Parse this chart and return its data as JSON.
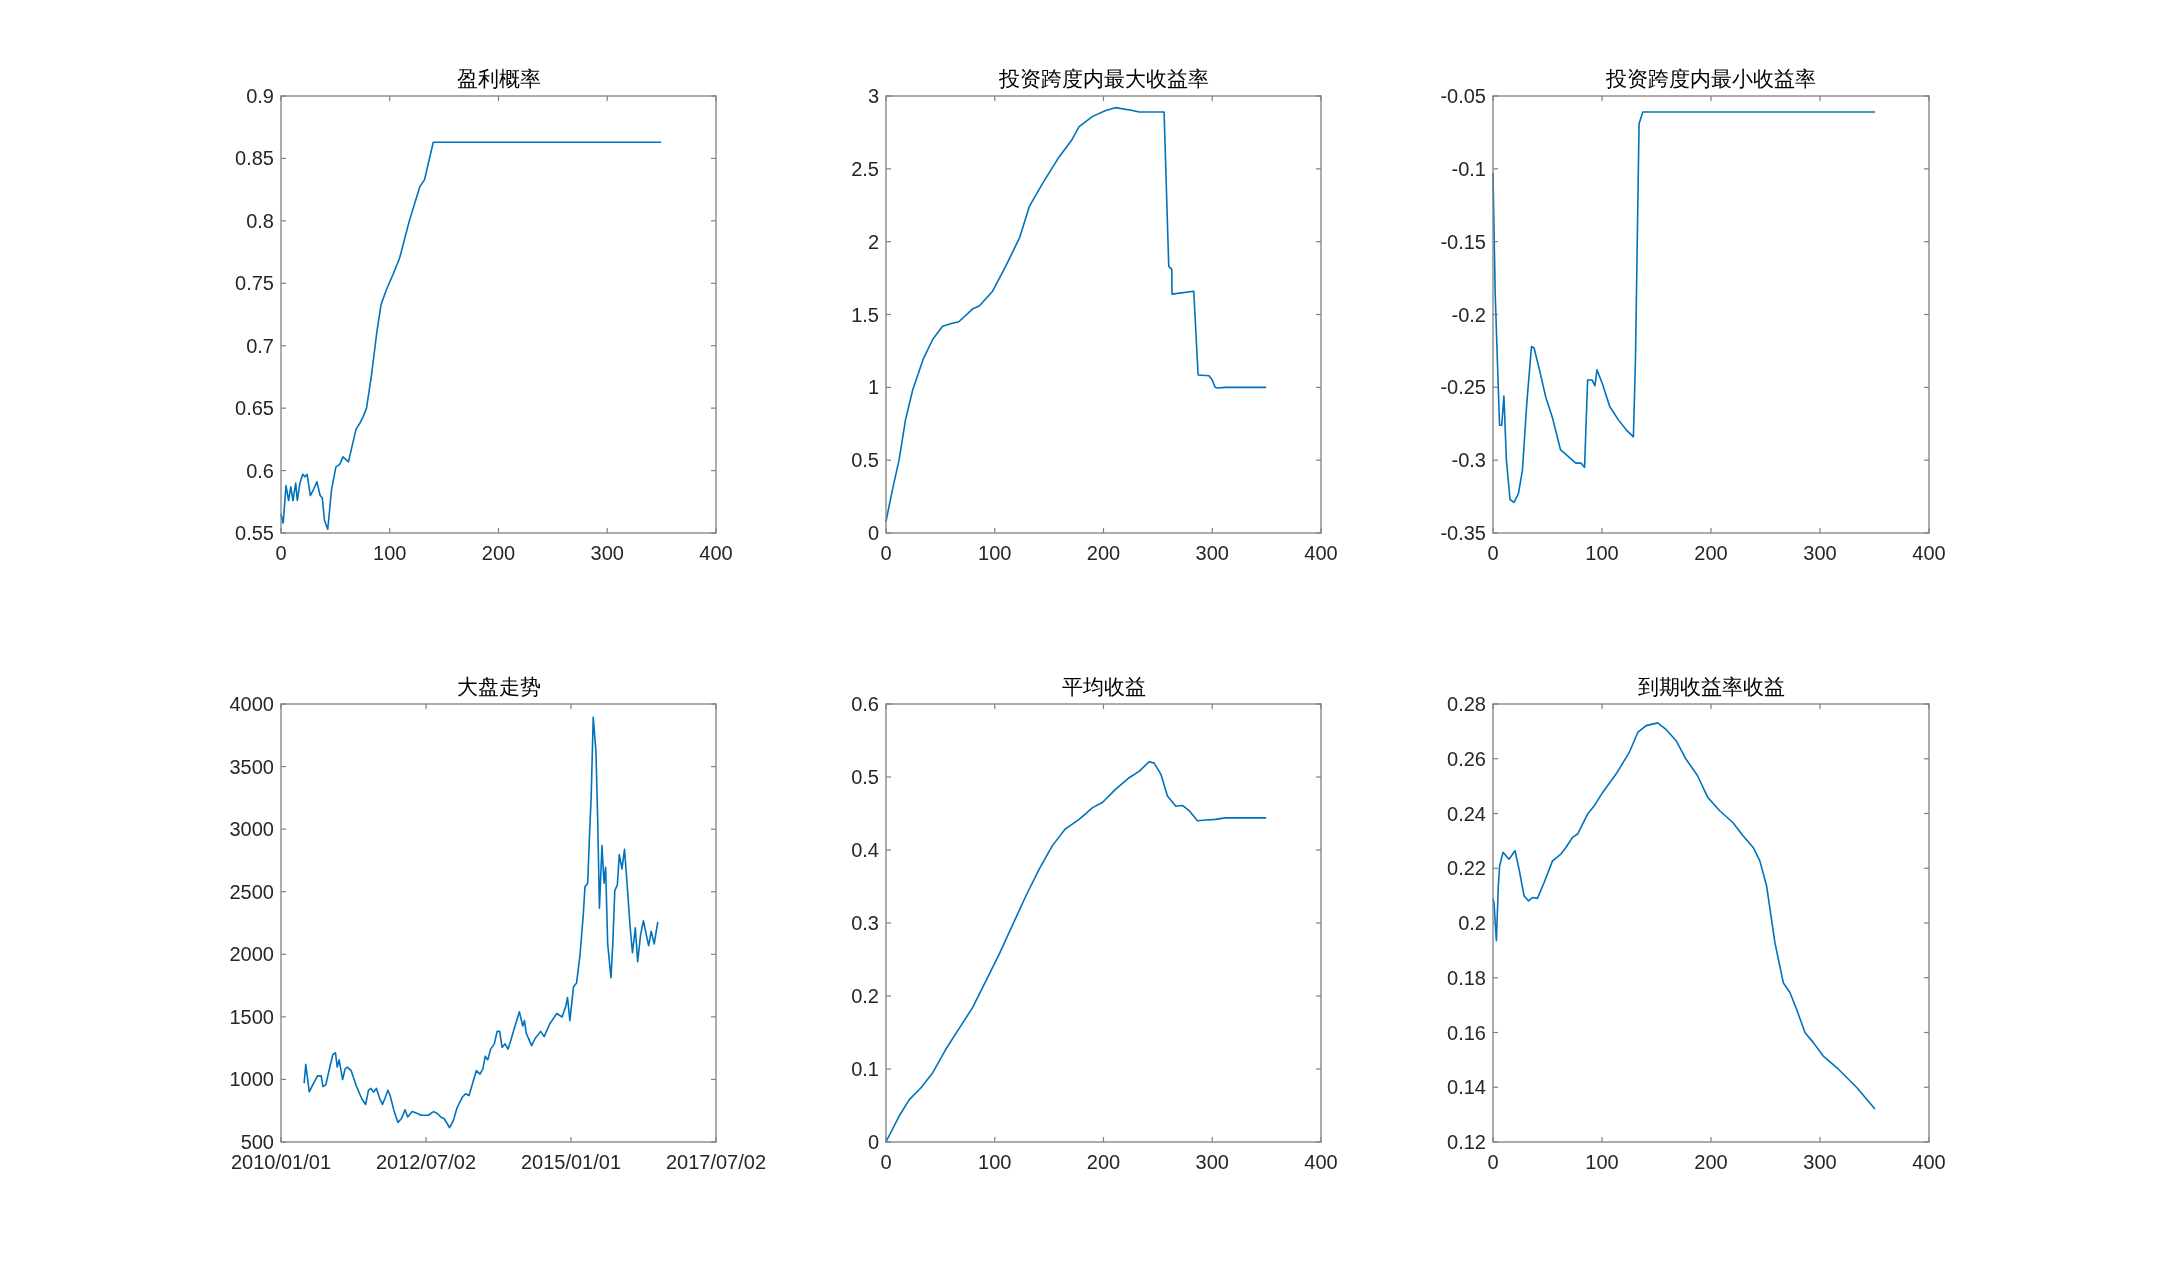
{
  "chart_data": [
    {
      "type": "line",
      "title": "盈利概率",
      "color": "#0072bd",
      "xlim": [
        0,
        400
      ],
      "ylim": [
        0.55,
        0.9
      ],
      "xticks": [
        0,
        100,
        200,
        300,
        400
      ],
      "yticks": [
        0.55,
        0.6,
        0.65,
        0.7,
        0.75,
        0.8,
        0.85,
        0.9
      ],
      "x": [
        0,
        2,
        4.6,
        7,
        9,
        11,
        13.5,
        15,
        17.4,
        20,
        22,
        24,
        27,
        30,
        33,
        36,
        38,
        40,
        43,
        46.5,
        50.5,
        54,
        57,
        62,
        66,
        69,
        72.5,
        75.5,
        78.6,
        83,
        88,
        92,
        97,
        103,
        109,
        118,
        127.5,
        132,
        140,
        349
      ],
      "values": [
        0.565,
        0.558,
        0.588,
        0.576,
        0.587,
        0.576,
        0.59,
        0.576,
        0.59,
        0.597,
        0.595,
        0.597,
        0.58,
        0.585,
        0.591,
        0.58,
        0.578,
        0.56,
        0.553,
        0.585,
        0.603,
        0.605,
        0.611,
        0.607,
        0.622,
        0.633,
        0.638,
        0.643,
        0.65,
        0.675,
        0.71,
        0.733,
        0.745,
        0.757,
        0.77,
        0.8,
        0.827,
        0.833,
        0.863,
        0.863
      ]
    },
    {
      "type": "line",
      "title": "投资跨度内最大收益率",
      "color": "#0072bd",
      "xlim": [
        0,
        400
      ],
      "ylim": [
        0,
        3
      ],
      "xticks": [
        0,
        100,
        200,
        300,
        400
      ],
      "yticks": [
        0,
        0.5,
        1,
        1.5,
        2,
        2.5,
        3
      ],
      "x": [
        0,
        6,
        12,
        18,
        24.5,
        34,
        43,
        52,
        61,
        67,
        80,
        86,
        98,
        110,
        123,
        131.7,
        144,
        159,
        171,
        177.6,
        190,
        202,
        211,
        226.7,
        232.8,
        254,
        255.7,
        260,
        262.8,
        263,
        283,
        287,
        297,
        300,
        302.6,
        304.8,
        312,
        349
      ],
      "values": [
        0.08,
        0.3,
        0.5,
        0.78,
        0.98,
        1.19,
        1.33,
        1.42,
        1.44,
        1.45,
        1.54,
        1.56,
        1.66,
        1.83,
        2.03,
        2.24,
        2.4,
        2.58,
        2.7,
        2.79,
        2.86,
        2.9,
        2.92,
        2.9,
        2.89,
        2.89,
        2.89,
        1.83,
        1.81,
        1.64,
        1.66,
        1.085,
        1.08,
        1.05,
        1.0,
        0.995,
        1.0,
        1.0
      ]
    },
    {
      "type": "line",
      "title": "投资跨度内最小收益率",
      "color": "#0072bd",
      "xlim": [
        0,
        400
      ],
      "ylim": [
        -0.35,
        -0.05
      ],
      "xticks": [
        0,
        100,
        200,
        300,
        400
      ],
      "yticks": [
        -0.35,
        -0.3,
        -0.25,
        -0.2,
        -0.15,
        -0.1,
        -0.05
      ],
      "x": [
        0,
        2,
        4,
        6,
        8,
        10,
        12.3,
        15.6,
        19.3,
        23.3,
        27,
        31,
        35.3,
        37.7,
        42.3,
        48.5,
        54.6,
        62,
        68.4,
        76,
        80.7,
        84,
        86.8,
        91,
        93.5,
        95.4,
        100.6,
        107,
        114.7,
        122,
        128.8,
        130.7,
        134,
        137.4,
        350
      ],
      "values": [
        -0.103,
        -0.185,
        -0.231,
        -0.276,
        -0.276,
        -0.256,
        -0.3,
        -0.327,
        -0.329,
        -0.323,
        -0.307,
        -0.261,
        -0.222,
        -0.223,
        -0.237,
        -0.257,
        -0.271,
        -0.293,
        -0.297,
        -0.302,
        -0.302,
        -0.305,
        -0.245,
        -0.245,
        -0.249,
        -0.238,
        -0.248,
        -0.263,
        -0.272,
        -0.279,
        -0.284,
        -0.231,
        -0.069,
        -0.061,
        -0.061
      ]
    },
    {
      "type": "line",
      "title": "大盘走势",
      "color": "#0072bd",
      "xlim": [
        "2010-01-01",
        "2017-07-02"
      ],
      "ylim": [
        500,
        4000
      ],
      "xticks": [
        {
          "value": "2010-01-01",
          "label": "2010/01/01"
        },
        {
          "value": "2012-07-02",
          "label": "2012/07/02"
        },
        {
          "value": "2015-01-01",
          "label": "2015/01/01"
        },
        {
          "value": "2017-07-02",
          "label": "2017/07/02"
        }
      ],
      "yticks": [
        500,
        1000,
        1500,
        2000,
        2500,
        3000,
        3500,
        4000
      ],
      "x": [
        "2010-05-27",
        "2010-06-06",
        "2010-06-28",
        "2010-07-20",
        "2010-08-19",
        "2010-09-11",
        "2010-09-22",
        "2010-10-10",
        "2010-11-07",
        "2010-11-24",
        "2010-12-10",
        "2010-12-21",
        "2011-01-02",
        "2011-01-24",
        "2011-02-09",
        "2011-02-22",
        "2011-03-19",
        "2011-04-22",
        "2011-05-26",
        "2011-06-18",
        "2011-07-06",
        "2011-07-21",
        "2011-08-07",
        "2011-08-25",
        "2011-09-16",
        "2011-10-02",
        "2011-10-20",
        "2011-11-05",
        "2011-11-19",
        "2011-12-15",
        "2012-01-07",
        "2012-01-29",
        "2012-02-21",
        "2012-03-09",
        "2012-04-06",
        "2012-05-09",
        "2012-06-01",
        "2012-06-23",
        "2012-07-16",
        "2012-08-19",
        "2012-09-11",
        "2012-10-03",
        "2012-10-25",
        "2012-11-28",
        "2012-12-21",
        "2013-01-13",
        "2013-02-15",
        "2013-03-08",
        "2013-03-30",
        "2013-04-22",
        "2013-05-15",
        "2013-06-07",
        "2013-06-25",
        "2013-07-10",
        "2013-07-26",
        "2013-08-13",
        "2013-09-05",
        "2013-09-23",
        "2013-10-09",
        "2013-10-24",
        "2013-11-12",
        "2013-11-30",
        "2013-12-15",
        "2014-01-07",
        "2014-02-10",
        "2014-03-03",
        "2014-03-14",
        "2014-03-25",
        "2014-04-28",
        "2014-05-20",
        "2014-06-24",
        "2014-07-16",
        "2014-08-19",
        "2014-10-03",
        "2014-11-06",
        "2014-11-29",
        "2014-12-10",
        "2014-12-25",
        "2015-01-17",
        "2015-02-05",
        "2015-02-27",
        "2015-03-19",
        "2015-03-30",
        "2015-04-16",
        "2015-04-29",
        "2015-05-08",
        "2015-05-21",
        "2015-06-07",
        "2015-06-18",
        "2015-06-29",
        "2015-07-15",
        "2015-07-28",
        "2015-08-07",
        "2015-08-20",
        "2015-09-01",
        "2015-09-10",
        "2015-09-21",
        "2015-10-04",
        "2015-10-20",
        "2015-11-01",
        "2015-11-18",
        "2015-12-04",
        "2015-12-20",
        "2016-01-07",
        "2016-01-23",
        "2016-02-10",
        "2016-02-25",
        "2016-03-14",
        "2016-04-01",
        "2016-04-17",
        "2016-05-04",
        "2016-05-20",
        "2016-06-08",
        "2016-06-30"
      ],
      "values": [
        975,
        1120,
        900,
        956,
        1028,
        1028,
        942,
        956,
        1113,
        1199,
        1213,
        1099,
        1156,
        999,
        1085,
        1099,
        1070,
        942,
        842,
        800,
        914,
        928,
        900,
        928,
        842,
        800,
        857,
        914,
        871,
        743,
        657,
        686,
        757,
        700,
        743,
        728,
        714,
        714,
        714,
        743,
        728,
        700,
        686,
        614,
        671,
        771,
        857,
        885,
        871,
        971,
        1070,
        1042,
        1085,
        1185,
        1156,
        1242,
        1284,
        1384,
        1384,
        1256,
        1284,
        1242,
        1299,
        1399,
        1541,
        1427,
        1470,
        1370,
        1270,
        1327,
        1384,
        1342,
        1441,
        1527,
        1499,
        1584,
        1655,
        1470,
        1741,
        1770,
        1998,
        2311,
        2540,
        2568,
        2996,
        3253,
        3894,
        3623,
        3081,
        2368,
        2868,
        2568,
        2696,
        2083,
        1926,
        1812,
        2083,
        2511,
        2554,
        2796,
        2682,
        2839,
        2568,
        2240,
        2012,
        2211,
        1941,
        2155,
        2268,
        2169,
        2069,
        2183,
        2083,
        2254
      ]
    },
    {
      "type": "line",
      "title": "平均收益",
      "color": "#0072bd",
      "xlim": [
        0,
        400
      ],
      "ylim": [
        0,
        0.6
      ],
      "xticks": [
        0,
        100,
        200,
        300,
        400
      ],
      "yticks": [
        0,
        0.1,
        0.2,
        0.3,
        0.4,
        0.5,
        0.6
      ],
      "x": [
        0,
        12.3,
        21.4,
        32,
        43,
        55,
        67,
        79.6,
        92,
        104,
        116,
        128.6,
        141,
        153,
        165,
        177.6,
        190,
        199,
        211,
        223.6,
        233,
        242,
        246.6,
        252.7,
        258.8,
        266.5,
        272.6,
        278.7,
        286.4,
        294,
        303,
        312,
        349
      ],
      "values": [
        0,
        0.036,
        0.058,
        0.074,
        0.095,
        0.127,
        0.155,
        0.184,
        0.221,
        0.257,
        0.296,
        0.337,
        0.374,
        0.406,
        0.429,
        0.442,
        0.458,
        0.465,
        0.483,
        0.499,
        0.508,
        0.521,
        0.519,
        0.504,
        0.474,
        0.46,
        0.461,
        0.454,
        0.44,
        0.441,
        0.442,
        0.444,
        0.444
      ]
    },
    {
      "type": "line",
      "title": "到期收益率收益",
      "color": "#0072bd",
      "xlim": [
        0,
        400
      ],
      "ylim": [
        0.12,
        0.28
      ],
      "xticks": [
        0,
        100,
        200,
        300,
        400
      ],
      "yticks": [
        0.12,
        0.14,
        0.16,
        0.18,
        0.2,
        0.22,
        0.24,
        0.26,
        0.28
      ],
      "x": [
        0,
        0.9,
        3.1,
        4.9,
        6.1,
        9.2,
        14.7,
        20.2,
        23.9,
        28.5,
        32.5,
        36.2,
        40.8,
        46.9,
        54.6,
        62.3,
        66.9,
        73,
        77.6,
        86.8,
        92.9,
        100.6,
        112.9,
        125,
        132.8,
        140.5,
        151,
        159,
        168,
        177,
        187.7,
        197,
        208,
        220,
        229.4,
        238.7,
        244.8,
        251,
        258.6,
        266.3,
        272.4,
        278.5,
        286.2,
        293.9,
        303,
        315.3,
        333.7,
        350
      ],
      "values": [
        0.2087,
        0.2075,
        0.1935,
        0.2136,
        0.2209,
        0.2258,
        0.2233,
        0.2264,
        0.2197,
        0.2099,
        0.2081,
        0.2093,
        0.209,
        0.2148,
        0.2227,
        0.2252,
        0.2276,
        0.2313,
        0.2325,
        0.2398,
        0.2428,
        0.2477,
        0.2544,
        0.2623,
        0.2696,
        0.2721,
        0.2731,
        0.2706,
        0.2666,
        0.2599,
        0.2538,
        0.2459,
        0.241,
        0.2367,
        0.2319,
        0.2276,
        0.2227,
        0.2136,
        0.1929,
        0.1782,
        0.1746,
        0.1685,
        0.16,
        0.1563,
        0.1514,
        0.1472,
        0.1399,
        0.1322
      ]
    }
  ]
}
